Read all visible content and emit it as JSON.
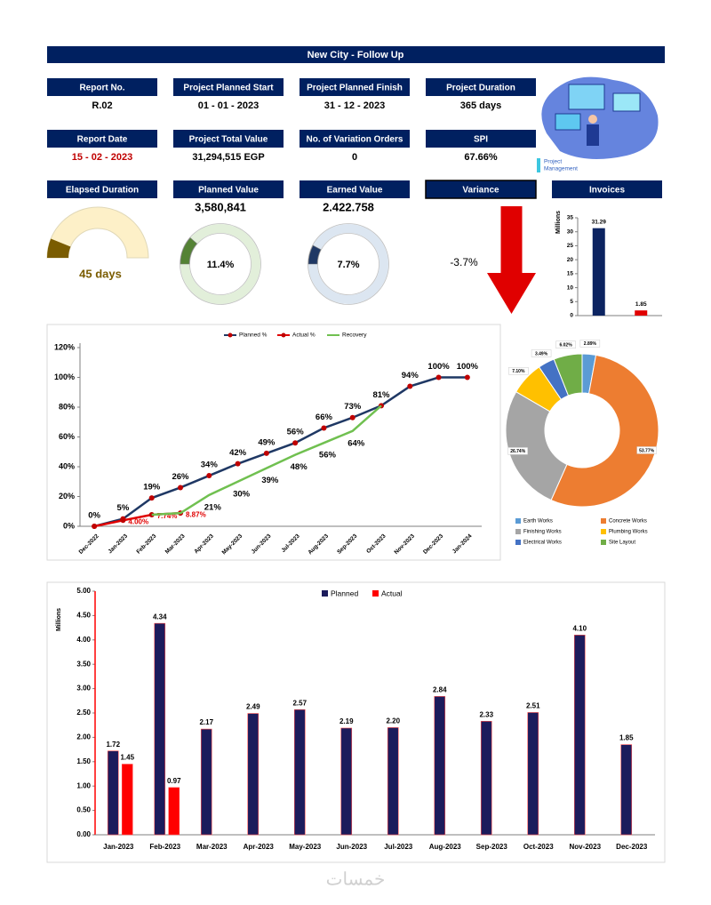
{
  "title": "New City - Follow Up",
  "kpis": [
    {
      "label": "Report No.",
      "value": "R.02"
    },
    {
      "label": "Project Planned Start",
      "value": "01 - 01 - 2023"
    },
    {
      "label": "Project Planned Finish",
      "value": "31 - 12 - 2023"
    },
    {
      "label": "Project Duration",
      "value": "365  days"
    },
    {
      "label": "Report Date",
      "value": "15 - 02 - 2023",
      "color": "#c00000"
    },
    {
      "label": "Project Total Value",
      "value": "31,294,515  EGP"
    },
    {
      "label": "No. of Variation Orders",
      "value": "0"
    },
    {
      "label": "SPI",
      "value": "67.66%"
    }
  ],
  "illustration_caption": [
    "Project",
    "Management"
  ],
  "chart_data": [
    {
      "type": "gauge",
      "title": "Elapsed Duration",
      "value": 45,
      "value_label": "45  days",
      "max": 365,
      "color": "#7a5c00",
      "track_color": "#fdf0c8"
    },
    {
      "type": "donut",
      "title": "Planned Value",
      "amount": "3,580,841",
      "value": 11.4,
      "value_label": "11.4%",
      "color": "#548235",
      "track_color": "#e2efda"
    },
    {
      "type": "donut",
      "title": "Earned Value",
      "amount": "2.422.758",
      "value": 7.7,
      "value_label": "7.7%",
      "color": "#1f3864",
      "track_color": "#dce6f1"
    },
    {
      "type": "indicator",
      "title": "Variance",
      "value": -3.7,
      "value_label": "-3.7%",
      "color": "#e00000"
    },
    {
      "type": "bar",
      "title": "Invoices",
      "values": [
        31.29,
        1.85
      ],
      "colors": [
        "#0c2461",
        "#e00000"
      ],
      "ylabel": "Millions",
      "ylim": [
        0,
        35
      ],
      "yticks": [
        0,
        5,
        10,
        15,
        20,
        25,
        30,
        35
      ]
    },
    {
      "type": "line",
      "categories": [
        "Dec-2022",
        "Jan-2023",
        "Feb-2023",
        "Mar-2023",
        "Apr-2023",
        "May-2023",
        "Jun-2023",
        "Jul-2023",
        "Aug-2023",
        "Sep-2023",
        "Oct-2023",
        "Nov-2023",
        "Dec-2023",
        "Jan-2024"
      ],
      "series": [
        {
          "name": "Planned %",
          "color": "#1f3864",
          "marker": true,
          "values": [
            0,
            5,
            19,
            26,
            34,
            42,
            49,
            56,
            66,
            73,
            81,
            94,
            100,
            100
          ],
          "value_labels": [
            "0%",
            "5%",
            "19%",
            "26%",
            "34%",
            "42%",
            "49%",
            "56%",
            "66%",
            "73%",
            "81%",
            "94%",
            "100%",
            "100%"
          ]
        },
        {
          "name": "Actual %",
          "color": "#e00000",
          "marker": true,
          "values": [
            0,
            4.0,
            7.74,
            8.87,
            null,
            null,
            null,
            null,
            null,
            null,
            null,
            null,
            null,
            null
          ],
          "value_labels": [
            null,
            "4.00%",
            "7.74%",
            "8.87%",
            null,
            null,
            null,
            null,
            null,
            null,
            null,
            null,
            null,
            null
          ]
        },
        {
          "name": "Recovery",
          "color": "#70c050",
          "marker": false,
          "values": [
            null,
            null,
            7.74,
            8.87,
            21,
            30,
            39,
            48,
            56,
            64,
            81,
            null,
            null,
            null
          ],
          "value_labels": [
            null,
            null,
            null,
            null,
            "21%",
            "30%",
            "39%",
            "48%",
            "56%",
            "64%",
            null,
            null,
            null,
            null
          ]
        }
      ],
      "ylim": [
        0,
        120
      ],
      "yticks": [
        {
          "value": 0,
          "label": "0%"
        },
        {
          "value": 20,
          "label": "20%"
        },
        {
          "value": 40,
          "label": "40%"
        },
        {
          "value": 60,
          "label": "60%"
        },
        {
          "value": 80,
          "label": "80%"
        },
        {
          "value": 100,
          "label": "100%"
        },
        {
          "value": 120,
          "label": "120%"
        }
      ],
      "legend": "top"
    },
    {
      "type": "pie",
      "categories": [
        "Earth Works",
        "Concrete Works",
        "Finishing Works",
        "Plumbing Works",
        "Electrical Works",
        "Site Layout"
      ],
      "values": [
        2.89,
        53.77,
        26.74,
        7.1,
        3.49,
        6.02
      ],
      "value_labels": [
        "2.89%",
        "53.77%",
        "26.74%",
        "7.10%",
        "3.49%",
        "6.02%"
      ],
      "colors": [
        "#5b9bd5",
        "#ed7d31",
        "#a5a5a5",
        "#ffc000",
        "#4472c4",
        "#70ad47"
      ],
      "legend": "bottom"
    },
    {
      "type": "bar",
      "ylabel": "Millions",
      "categories": [
        "Jan-2023",
        "Feb-2023",
        "Mar-2023",
        "Apr-2023",
        "May-2023",
        "Jun-2023",
        "Jul-2023",
        "Aug-2023",
        "Sep-2023",
        "Oct-2023",
        "Nov-2023",
        "Dec-2023"
      ],
      "series": [
        {
          "name": "Planned",
          "color": "#1c1c5c",
          "values": [
            1.72,
            4.34,
            2.17,
            2.49,
            2.57,
            2.19,
            2.2,
            2.84,
            2.33,
            2.51,
            4.1,
            1.85
          ],
          "value_labels": [
            "1.72",
            "4.34",
            "2.17",
            "2.49",
            "2.57",
            "2.19",
            "2.20",
            "2.84",
            "2.33",
            "2.51",
            "4.10",
            "1.85"
          ]
        },
        {
          "name": "Actual",
          "color": "#ff0000",
          "values": [
            1.45,
            0.97,
            null,
            null,
            null,
            null,
            null,
            null,
            null,
            null,
            null,
            null
          ],
          "value_labels": [
            "1.45",
            "0.97",
            null,
            null,
            null,
            null,
            null,
            null,
            null,
            null,
            null,
            null
          ]
        }
      ],
      "ylim": [
        0,
        5
      ],
      "yticks": [
        {
          "value": 0,
          "label": "0.00"
        },
        {
          "value": 0.5,
          "label": "0.50"
        },
        {
          "value": 1,
          "label": "1.00"
        },
        {
          "value": 1.5,
          "label": "1.50"
        },
        {
          "value": 2,
          "label": "2.00"
        },
        {
          "value": 2.5,
          "label": "2.50"
        },
        {
          "value": 3,
          "label": "3.00"
        },
        {
          "value": 3.5,
          "label": "3.50"
        },
        {
          "value": 4,
          "label": "4.00"
        },
        {
          "value": 4.5,
          "label": "4.50"
        },
        {
          "value": 5,
          "label": "5.00"
        }
      ],
      "legend": "top"
    }
  ],
  "watermark": "خمسات"
}
